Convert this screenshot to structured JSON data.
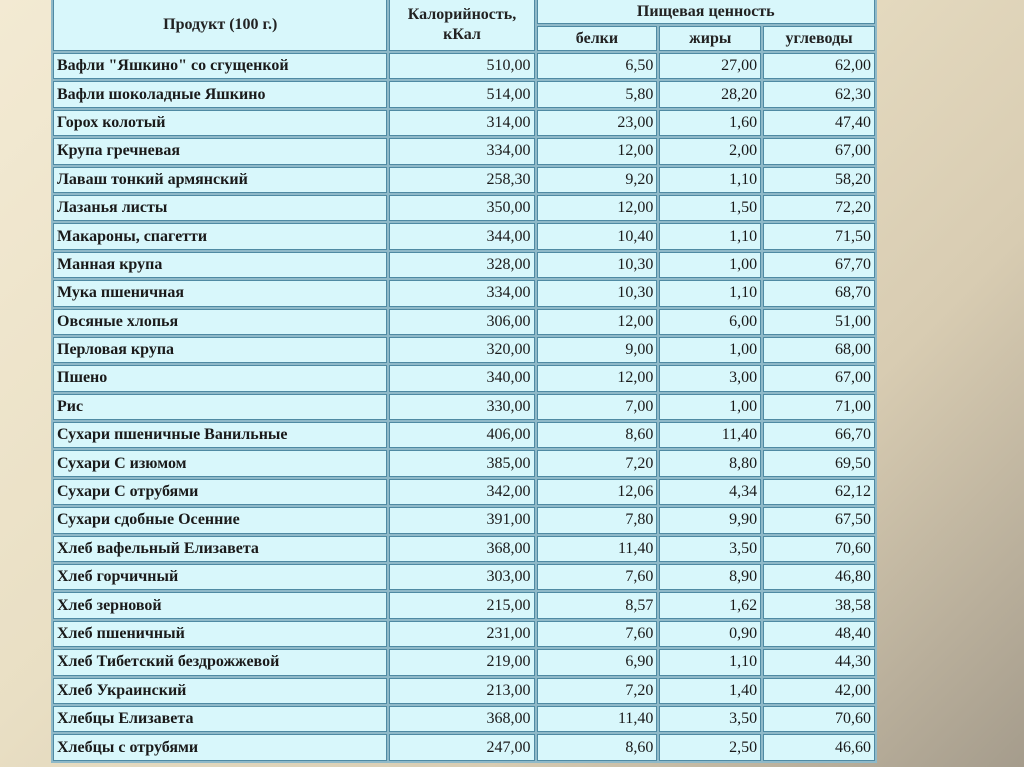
{
  "table": {
    "headers": {
      "product": "Продукт (100 г.)",
      "calories": "Калорийность, кКал",
      "nutrition": "Пищевая ценность",
      "protein": "белки",
      "fat": "жиры",
      "carbs": "углеводы"
    },
    "rows": [
      [
        "Вафли \"Яшкино\" со сгущенкой",
        "510,00",
        "6,50",
        "27,00",
        "62,00"
      ],
      [
        "Вафли шоколадные Яшкино",
        "514,00",
        "5,80",
        "28,20",
        "62,30"
      ],
      [
        "Горох колотый",
        "314,00",
        "23,00",
        "1,60",
        "47,40"
      ],
      [
        "Крупа гречневая",
        "334,00",
        "12,00",
        "2,00",
        "67,00"
      ],
      [
        "Лаваш тонкий армянский",
        "258,30",
        "9,20",
        "1,10",
        "58,20"
      ],
      [
        "Лазанья листы",
        "350,00",
        "12,00",
        "1,50",
        "72,20"
      ],
      [
        "Макароны, спагетти",
        "344,00",
        "10,40",
        "1,10",
        "71,50"
      ],
      [
        "Манная крупа",
        "328,00",
        "10,30",
        "1,00",
        "67,70"
      ],
      [
        "Мука пшеничная",
        "334,00",
        "10,30",
        "1,10",
        "68,70"
      ],
      [
        "Овсяные хлопья",
        "306,00",
        "12,00",
        "6,00",
        "51,00"
      ],
      [
        "Перловая крупа",
        "320,00",
        "9,00",
        "1,00",
        "68,00"
      ],
      [
        "Пшено",
        "340,00",
        "12,00",
        "3,00",
        "67,00"
      ],
      [
        "Рис",
        "330,00",
        "7,00",
        "1,00",
        "71,00"
      ],
      [
        "Сухари пшеничные Ванильные",
        "406,00",
        "8,60",
        "11,40",
        "66,70"
      ],
      [
        "Сухари С изюмом",
        "385,00",
        "7,20",
        "8,80",
        "69,50"
      ],
      [
        "Сухари С отрубями",
        "342,00",
        "12,06",
        "4,34",
        "62,12"
      ],
      [
        "Сухари сдобные Осенние",
        "391,00",
        "7,80",
        "9,90",
        "67,50"
      ],
      [
        "Хлеб вафельный Елизавета",
        "368,00",
        "11,40",
        "3,50",
        "70,60"
      ],
      [
        "Хлеб горчичный",
        "303,00",
        "7,60",
        "8,90",
        "46,80"
      ],
      [
        "Хлеб зерновой",
        "215,00",
        "8,57",
        "1,62",
        "38,58"
      ],
      [
        "Хлеб пшеничный",
        "231,00",
        "7,60",
        "0,90",
        "48,40"
      ],
      [
        "Хлеб Тибетский бездрожжевой",
        "219,00",
        "6,90",
        "1,10",
        "44,30"
      ],
      [
        "Хлеб Украинский",
        "213,00",
        "7,20",
        "1,40",
        "42,00"
      ],
      [
        "Хлебцы Елизавета",
        "368,00",
        "11,40",
        "3,50",
        "70,60"
      ],
      [
        "Хлебцы с отрубями",
        "247,00",
        "8,60",
        "2,50",
        "46,60"
      ]
    ]
  }
}
